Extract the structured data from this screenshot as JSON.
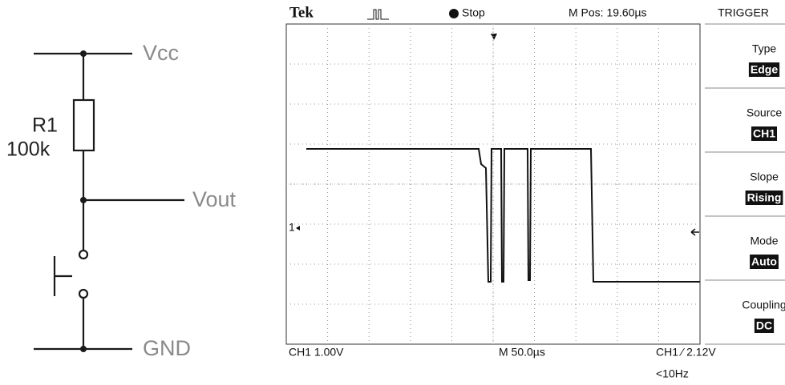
{
  "schematic": {
    "supply": "Vcc",
    "resistor_name": "R1",
    "resistor_value": "100k",
    "output": "Vout",
    "ground": "GND"
  },
  "scope": {
    "brand": "Tek",
    "status": "Stop",
    "position": "M Pos: 19.60µs",
    "channel_marker": "1",
    "menu_title": "TRIGGER",
    "menu": [
      {
        "label": "Type",
        "value": "Edge"
      },
      {
        "label": "Source",
        "value": "CH1"
      },
      {
        "label": "Slope",
        "value": "Rising"
      },
      {
        "label": "Mode",
        "value": "Auto"
      },
      {
        "label": "Coupling",
        "value": "DC"
      }
    ],
    "channel_scale": "CH1  1.00V",
    "time_scale": "M 50.0µs",
    "trigger_level": "CH1 ⁄ 2.12V",
    "frequency": "<10Hz"
  }
}
